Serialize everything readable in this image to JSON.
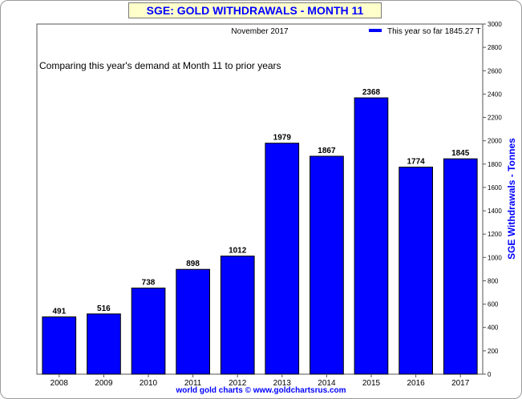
{
  "chart_data": {
    "type": "bar",
    "title": "SGE: GOLD WITHDRAWALS - MONTH 11",
    "subtitle": "November 2017",
    "annotation": "Comparing this year's demand at Month 11 to prior years",
    "legend": {
      "label": "This year so far 1845.27 T",
      "position": "top-right",
      "color": "#0000ff"
    },
    "categories": [
      "2008",
      "2009",
      "2010",
      "2011",
      "2012",
      "2013",
      "2014",
      "2015",
      "2016",
      "2017"
    ],
    "values": [
      491,
      516,
      738,
      898,
      1012,
      1979,
      1867,
      2368,
      1774,
      1845
    ],
    "ylabel": "SGE Withdrawals - Tonnes",
    "ylim": [
      0,
      3000
    ],
    "yticks": [
      0,
      200,
      400,
      600,
      800,
      1000,
      1200,
      1400,
      1600,
      1800,
      2000,
      2200,
      2400,
      2600,
      2800,
      3000
    ],
    "y_axis_side": "right",
    "bar_color": "#0000ff",
    "grid": false
  },
  "footer": "world gold charts © www.goldchartsrus.com"
}
